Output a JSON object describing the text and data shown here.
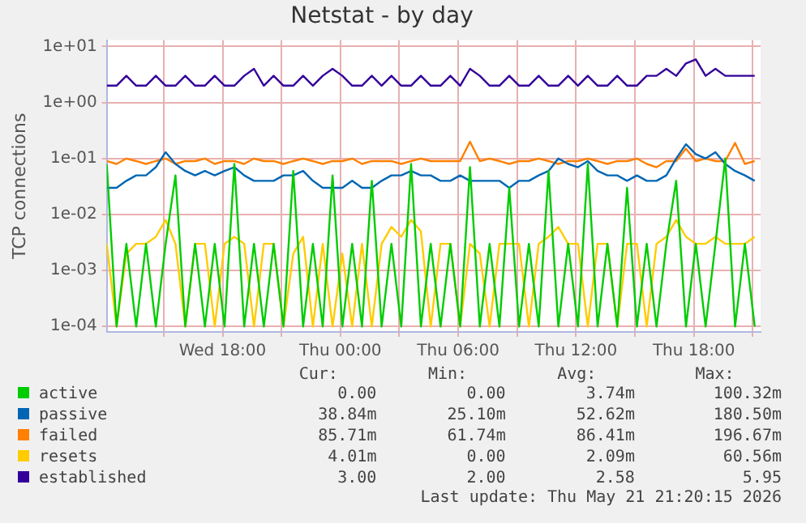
{
  "chart_data": {
    "type": "line",
    "title": "Netstat - by day",
    "ylabel": "TCP connections",
    "log": "y",
    "grid": true,
    "legend": "bottom",
    "marker": "none",
    "x": [
      "2026-05-20T12:06",
      "2026-05-20T12:36",
      "2026-05-20T13:06",
      "2026-05-20T13:36",
      "2026-05-20T14:06",
      "2026-05-20T14:36",
      "2026-05-20T15:06",
      "2026-05-20T15:36",
      "2026-05-20T16:06",
      "2026-05-20T16:36",
      "2026-05-20T17:06",
      "2026-05-20T17:36",
      "2026-05-20T18:06",
      "2026-05-20T18:36",
      "2026-05-20T19:06",
      "2026-05-20T19:36",
      "2026-05-20T20:06",
      "2026-05-20T20:36",
      "2026-05-20T21:06",
      "2026-05-20T21:36",
      "2026-05-20T22:06",
      "2026-05-20T22:36",
      "2026-05-20T23:06",
      "2026-05-20T23:36",
      "2026-05-21T00:06",
      "2026-05-21T00:36",
      "2026-05-21T01:06",
      "2026-05-21T01:36",
      "2026-05-21T02:06",
      "2026-05-21T02:36",
      "2026-05-21T03:06",
      "2026-05-21T03:36",
      "2026-05-21T04:06",
      "2026-05-21T04:36",
      "2026-05-21T05:06",
      "2026-05-21T05:36",
      "2026-05-21T06:06",
      "2026-05-21T06:36",
      "2026-05-21T07:06",
      "2026-05-21T07:36",
      "2026-05-21T08:06",
      "2026-05-21T08:36",
      "2026-05-21T09:06",
      "2026-05-21T09:36",
      "2026-05-21T10:06",
      "2026-05-21T10:36",
      "2026-05-21T11:06",
      "2026-05-21T11:36",
      "2026-05-21T12:06",
      "2026-05-21T12:36",
      "2026-05-21T13:06",
      "2026-05-21T13:36",
      "2026-05-21T14:06",
      "2026-05-21T14:36",
      "2026-05-21T15:06",
      "2026-05-21T15:36",
      "2026-05-21T16:06",
      "2026-05-21T16:36",
      "2026-05-21T17:06",
      "2026-05-21T17:36",
      "2026-05-21T18:06",
      "2026-05-21T18:36",
      "2026-05-21T19:06",
      "2026-05-21T19:36",
      "2026-05-21T20:06",
      "2026-05-21T20:36",
      "2026-05-21T21:06"
    ],
    "xlim": [
      "2026-05-20T12:06",
      "2026-05-21T21:24"
    ],
    "xticks": [
      {
        "value": "2026-05-20T15:00",
        "label": null
      },
      {
        "value": "2026-05-20T18:00",
        "label": "Wed 18:00"
      },
      {
        "value": "2026-05-20T21:00",
        "label": null
      },
      {
        "value": "2026-05-21T00:00",
        "label": "Thu 00:00"
      },
      {
        "value": "2026-05-21T03:00",
        "label": null
      },
      {
        "value": "2026-05-21T06:00",
        "label": "Thu 06:00"
      },
      {
        "value": "2026-05-21T09:00",
        "label": null
      },
      {
        "value": "2026-05-21T12:00",
        "label": "Thu 12:00"
      },
      {
        "value": "2026-05-21T15:00",
        "label": null
      },
      {
        "value": "2026-05-21T18:00",
        "label": "Thu 18:00"
      },
      {
        "value": "2026-05-21T21:00",
        "label": null
      }
    ],
    "ylim": [
      8e-05,
      13
    ],
    "yticks": [
      {
        "value": 0.0001,
        "label": "1e-04"
      },
      {
        "value": 0.001,
        "label": "1e-03"
      },
      {
        "value": 0.01,
        "label": "1e-02"
      },
      {
        "value": 0.1,
        "label": "1e-01"
      },
      {
        "value": 1,
        "label": "1e+00"
      },
      {
        "value": 10,
        "label": "1e+01"
      }
    ],
    "series": [
      {
        "name": "active",
        "color": "#00cc00",
        "values": [
          0.08,
          0.0001,
          0.003,
          0.0001,
          0.003,
          0.0001,
          0.003,
          0.05,
          0.0001,
          0.003,
          0.0001,
          0.003,
          0.0001,
          0.08,
          0.0001,
          0.003,
          0.0001,
          0.003,
          0.0001,
          0.06,
          0.0001,
          0.003,
          0.0001,
          0.05,
          0.0001,
          0.003,
          0.0001,
          0.04,
          0.0001,
          0.003,
          0.0001,
          0.08,
          0.0001,
          0.003,
          0.0001,
          0.003,
          0.0001,
          0.07,
          0.0001,
          0.003,
          0.0001,
          0.03,
          0.0001,
          0.003,
          0.0001,
          0.06,
          0.0001,
          0.003,
          0.0001,
          0.08,
          0.0001,
          0.003,
          0.0001,
          0.03,
          0.0001,
          0.003,
          0.0001,
          0.003,
          0.04,
          0.0001,
          0.003,
          0.0001,
          0.003,
          0.1,
          0.0001,
          0.003,
          0.0001
        ]
      },
      {
        "name": "passive",
        "color": "#0066b3",
        "values": [
          0.03,
          0.03,
          0.04,
          0.05,
          0.05,
          0.07,
          0.13,
          0.08,
          0.06,
          0.05,
          0.06,
          0.05,
          0.06,
          0.07,
          0.05,
          0.04,
          0.04,
          0.04,
          0.05,
          0.05,
          0.06,
          0.04,
          0.03,
          0.03,
          0.03,
          0.04,
          0.03,
          0.03,
          0.04,
          0.05,
          0.05,
          0.06,
          0.05,
          0.05,
          0.04,
          0.04,
          0.05,
          0.04,
          0.04,
          0.04,
          0.04,
          0.03,
          0.04,
          0.04,
          0.05,
          0.06,
          0.1,
          0.08,
          0.07,
          0.09,
          0.06,
          0.05,
          0.05,
          0.04,
          0.05,
          0.04,
          0.04,
          0.05,
          0.1,
          0.18,
          0.12,
          0.1,
          0.13,
          0.08,
          0.06,
          0.05,
          0.04
        ]
      },
      {
        "name": "failed",
        "color": "#ff8000",
        "values": [
          0.09,
          0.08,
          0.1,
          0.09,
          0.08,
          0.09,
          0.1,
          0.08,
          0.09,
          0.09,
          0.1,
          0.08,
          0.09,
          0.09,
          0.08,
          0.1,
          0.09,
          0.09,
          0.08,
          0.09,
          0.1,
          0.09,
          0.08,
          0.09,
          0.09,
          0.1,
          0.08,
          0.09,
          0.09,
          0.09,
          0.08,
          0.09,
          0.1,
          0.09,
          0.09,
          0.09,
          0.09,
          0.2,
          0.09,
          0.1,
          0.09,
          0.08,
          0.09,
          0.09,
          0.1,
          0.09,
          0.08,
          0.09,
          0.09,
          0.1,
          0.09,
          0.08,
          0.09,
          0.09,
          0.1,
          0.08,
          0.07,
          0.09,
          0.09,
          0.15,
          0.09,
          0.1,
          0.09,
          0.09,
          0.19,
          0.08,
          0.09
        ]
      },
      {
        "name": "resets",
        "color": "#ffcc00",
        "values": [
          0.003,
          0.0001,
          0.002,
          0.003,
          0.003,
          0.004,
          0.008,
          0.003,
          0.0001,
          0.003,
          0.003,
          0.0001,
          0.003,
          0.004,
          0.003,
          0.0001,
          0.003,
          0.003,
          0.0001,
          0.002,
          0.004,
          0.0001,
          0.003,
          0.0001,
          0.002,
          0.0001,
          0.003,
          0.0001,
          0.003,
          0.006,
          0.004,
          0.008,
          0.005,
          0.0001,
          0.003,
          0.003,
          0.0001,
          0.003,
          0.002,
          0.0001,
          0.003,
          0.003,
          0.003,
          0.0001,
          0.003,
          0.004,
          0.006,
          0.003,
          0.003,
          0.0001,
          0.003,
          0.003,
          0.0001,
          0.003,
          0.003,
          0.0001,
          0.003,
          0.004,
          0.008,
          0.004,
          0.003,
          0.003,
          0.004,
          0.003,
          0.003,
          0.003,
          0.004
        ]
      },
      {
        "name": "established",
        "color": "#330099",
        "values": [
          2,
          2,
          3,
          2,
          2,
          3,
          2,
          2,
          3,
          2,
          2,
          3,
          2,
          2,
          3,
          4,
          2,
          3,
          2,
          2,
          3,
          2,
          3,
          4,
          3,
          2,
          2,
          3,
          2,
          3,
          2,
          2,
          3,
          2,
          2,
          3,
          2,
          4,
          3,
          2,
          2,
          3,
          2,
          2,
          3,
          2,
          2,
          3,
          2,
          3,
          2,
          2,
          3,
          2,
          2,
          3,
          3,
          4,
          3,
          5,
          5.9,
          3,
          4,
          3,
          3,
          3,
          3
        ]
      }
    ],
    "annotations": [
      "Cur:",
      "Min:",
      "Avg:",
      "Max:",
      "0.00",
      "0.00",
      "3.74m",
      "100.32m",
      "38.84m",
      "25.10m",
      "52.62m",
      "180.50m",
      "85.71m",
      "61.74m",
      "86.41m",
      "196.67m",
      "4.01m",
      "0.00",
      "2.09m",
      "60.56m",
      "3.00",
      "2.00",
      "2.58",
      "5.95",
      "Last update: Thu May 21 21:20:15 2026"
    ]
  }
}
